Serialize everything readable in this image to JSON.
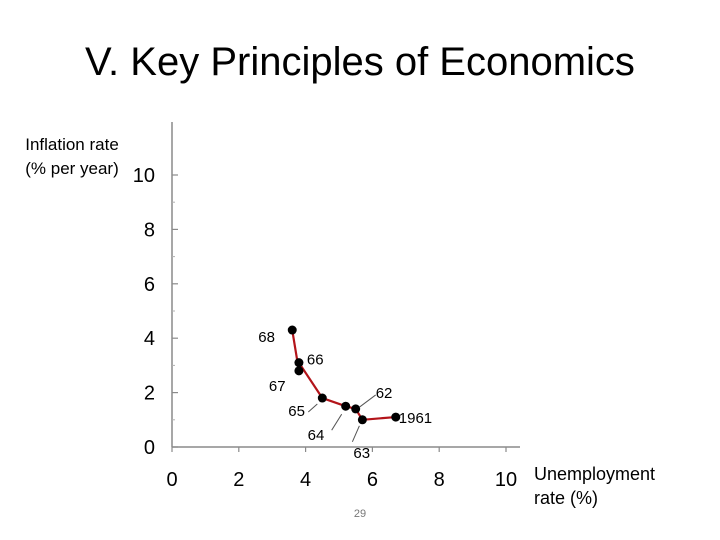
{
  "slide": {
    "title": "V. Key Principles of Economics",
    "page_number": "29"
  },
  "chart_data": {
    "type": "line",
    "ylabel_lines": [
      "Inflation rate",
      "(% per year)"
    ],
    "xlabel_lines": [
      "Unemployment",
      "rate (%)"
    ],
    "xlim": [
      0,
      10
    ],
    "ylim": [
      0,
      10
    ],
    "x_ticks": [
      "0",
      "2",
      "4",
      "6",
      "8",
      "10"
    ],
    "y_ticks": [
      "0",
      "2",
      "4",
      "6",
      "8",
      "10"
    ],
    "grid": false,
    "points": [
      {
        "label": "1961",
        "x": 6.7,
        "y": 1.1
      },
      {
        "label": "62",
        "x": 5.5,
        "y": 1.4
      },
      {
        "label": "63",
        "x": 5.7,
        "y": 1.0
      },
      {
        "label": "64",
        "x": 5.2,
        "y": 1.5
      },
      {
        "label": "65",
        "x": 4.5,
        "y": 1.8
      },
      {
        "label": "66",
        "x": 3.8,
        "y": 3.1
      },
      {
        "label": "67",
        "x": 3.8,
        "y": 2.8
      },
      {
        "label": "68",
        "x": 3.6,
        "y": 4.3
      }
    ],
    "path_order": [
      "68",
      "67",
      "66",
      "65",
      "64",
      "62",
      "63",
      "1961"
    ],
    "series_color": "#b3141a",
    "marker_color": "#000000"
  }
}
